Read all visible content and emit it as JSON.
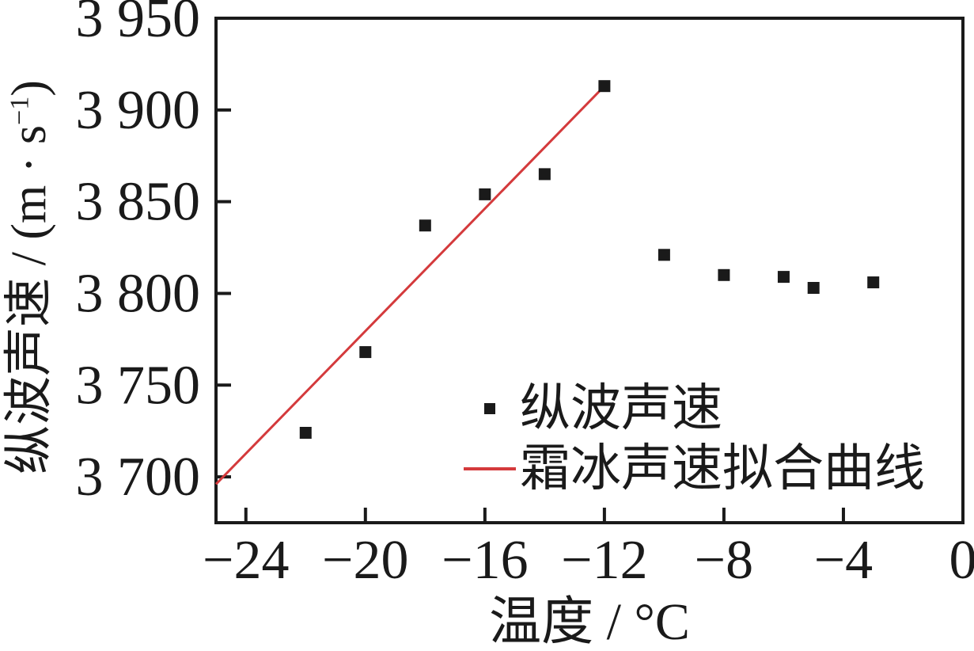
{
  "chart_data": {
    "type": "scatter",
    "title": "",
    "xlabel": "温度 / °C",
    "ylabel": "纵波声速 / (m · s⁻¹)",
    "ylabel_parts": {
      "prefix": "纵波声速 / (m · s",
      "superscript": "−1",
      "suffix": ")"
    },
    "xlim": [
      -25,
      0
    ],
    "ylim": [
      3675,
      3950
    ],
    "grid": false,
    "axis_color": "#1a1a1a",
    "x_ticks": [
      {
        "value": -24,
        "label": "−24"
      },
      {
        "value": -20,
        "label": "−20"
      },
      {
        "value": -16,
        "label": "−16"
      },
      {
        "value": -12,
        "label": "−12"
      },
      {
        "value": -8,
        "label": "−8"
      },
      {
        "value": -4,
        "label": "−4"
      },
      {
        "value": 0,
        "label": "0"
      }
    ],
    "y_ticks": [
      {
        "value": 3700,
        "label": "3 700"
      },
      {
        "value": 3750,
        "label": "3 750"
      },
      {
        "value": 3800,
        "label": "3 800"
      },
      {
        "value": 3850,
        "label": "3 850"
      },
      {
        "value": 3900,
        "label": "3 900"
      },
      {
        "value": 3950,
        "label": "3 950"
      }
    ],
    "series": [
      {
        "name": "纵波声速",
        "type": "scatter",
        "marker": "square",
        "color": "#1a1a1a",
        "points": [
          {
            "x": -22,
            "y": 3724
          },
          {
            "x": -20,
            "y": 3768
          },
          {
            "x": -18,
            "y": 3837
          },
          {
            "x": -16,
            "y": 3854
          },
          {
            "x": -14,
            "y": 3865
          },
          {
            "x": -12,
            "y": 3913
          },
          {
            "x": -10,
            "y": 3821
          },
          {
            "x": -8,
            "y": 3810
          },
          {
            "x": -6,
            "y": 3809
          },
          {
            "x": -5,
            "y": 3803
          },
          {
            "x": -3,
            "y": 3806
          }
        ]
      },
      {
        "name": "霜冰声速拟合曲线",
        "type": "line",
        "color": "#d43a3c",
        "points": [
          {
            "x": -25,
            "y": 3696
          },
          {
            "x": -12,
            "y": 3913
          }
        ]
      }
    ],
    "legend_position": "inside-lower-right",
    "legend": [
      {
        "label": "纵波声速",
        "swatch": "square",
        "color": "#1a1a1a"
      },
      {
        "label": "霜冰声速拟合曲线",
        "swatch": "line",
        "color": "#d43a3c"
      }
    ]
  }
}
